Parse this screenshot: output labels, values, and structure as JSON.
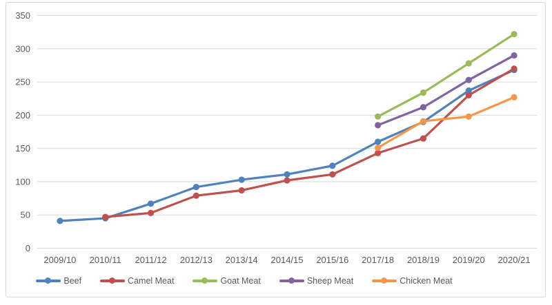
{
  "chart_data": {
    "type": "line",
    "title": "",
    "xlabel": "",
    "ylabel": "",
    "categories": [
      "2009/10",
      "2010/11",
      "2011/12",
      "2012/13",
      "2013/14",
      "2014/15",
      "2015/16",
      "2017/18",
      "2018/19",
      "2019/20",
      "2020/21"
    ],
    "series": [
      {
        "name": "Beef",
        "color": "#4F81BD",
        "values": [
          41,
          45,
          67,
          92,
          103,
          111,
          124,
          160,
          190,
          237,
          268
        ]
      },
      {
        "name": "Camel Meat",
        "color": "#C0504D",
        "values": [
          null,
          47,
          53,
          79,
          87,
          102,
          111,
          143,
          165,
          230,
          270
        ]
      },
      {
        "name": "Goat Meat",
        "color": "#9BBB59",
        "values": [
          null,
          null,
          null,
          null,
          null,
          null,
          null,
          198,
          234,
          278,
          322
        ]
      },
      {
        "name": "Sheep Meat",
        "color": "#8064A2",
        "values": [
          null,
          null,
          null,
          null,
          null,
          null,
          null,
          185,
          212,
          253,
          290
        ]
      },
      {
        "name": "Chicken Meat",
        "color": "#F79646",
        "values": [
          null,
          null,
          null,
          null,
          null,
          null,
          null,
          151,
          191,
          198,
          227
        ]
      }
    ],
    "y_ticks": [
      0,
      50,
      100,
      150,
      200,
      250,
      300,
      350
    ],
    "ylim": [
      0,
      350
    ],
    "grid": true,
    "legend_position": "bottom",
    "gridline_color": "#d9d9d9",
    "axis_label_color": "#595959",
    "frame_border_color": "#d9d9d9"
  }
}
